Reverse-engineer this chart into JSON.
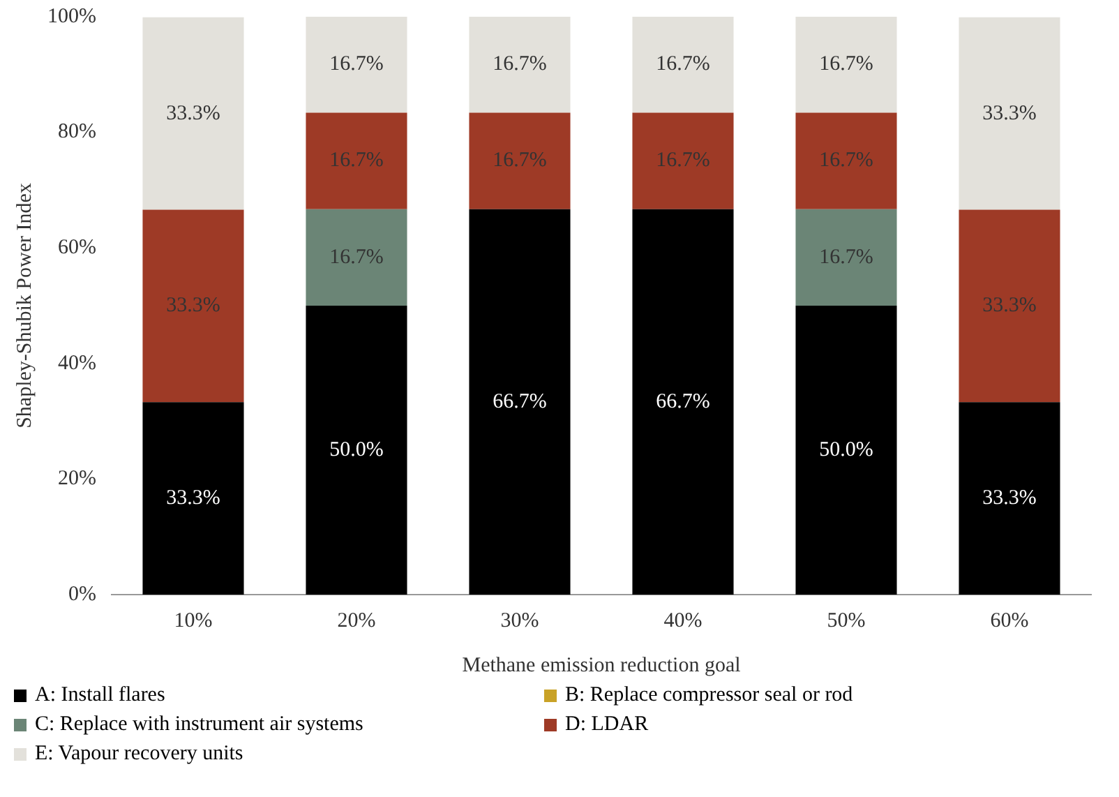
{
  "chart_data": {
    "type": "bar",
    "stacked": true,
    "xlabel": "Methane emission reduction goal",
    "ylabel": "Shapley-Shubik Power Index",
    "categories": [
      "10%",
      "20%",
      "30%",
      "40%",
      "50%",
      "60%"
    ],
    "ylim": [
      0,
      100
    ],
    "yticks": [
      {
        "value": 0,
        "label": "0%"
      },
      {
        "value": 20,
        "label": "20%"
      },
      {
        "value": 40,
        "label": "40%"
      },
      {
        "value": 60,
        "label": "60%"
      },
      {
        "value": 80,
        "label": "80%"
      },
      {
        "value": 100,
        "label": "100%"
      }
    ],
    "grid": false,
    "legend": "bottom",
    "series": [
      {
        "name": "A: Install flares",
        "color": "#000000",
        "values": [
          33.3,
          50.0,
          66.7,
          66.7,
          50.0,
          33.3
        ],
        "value_labels": [
          "33.3%",
          "50.0%",
          "66.7%",
          "66.7%",
          "50.0%",
          "33.3%"
        ]
      },
      {
        "name": "B: Replace compressor seal or rod",
        "color": "#c9a227",
        "values": [
          0,
          0,
          0,
          0,
          0,
          0
        ]
      },
      {
        "name": "C: Replace with instrument air systems",
        "color": "#6b8576",
        "values": [
          0,
          16.7,
          0,
          0,
          16.7,
          0
        ],
        "value_labels": [
          null,
          "16.7%",
          null,
          null,
          "16.7%",
          null
        ]
      },
      {
        "name": "D: LDAR",
        "color": "#9e3a26",
        "values": [
          33.3,
          16.7,
          16.7,
          16.7,
          16.7,
          33.3
        ],
        "value_labels": [
          "33.3%",
          "16.7%",
          "16.7%",
          "16.7%",
          "16.7%",
          "33.3%"
        ]
      },
      {
        "name": "E: Vapour recovery units",
        "color": "#e3e1db",
        "values": [
          33.3,
          16.7,
          16.7,
          16.7,
          16.7,
          33.3
        ],
        "value_labels": [
          "33.3%",
          "16.7%",
          "16.7%",
          "16.7%",
          "16.7%",
          "33.3%"
        ]
      }
    ]
  }
}
